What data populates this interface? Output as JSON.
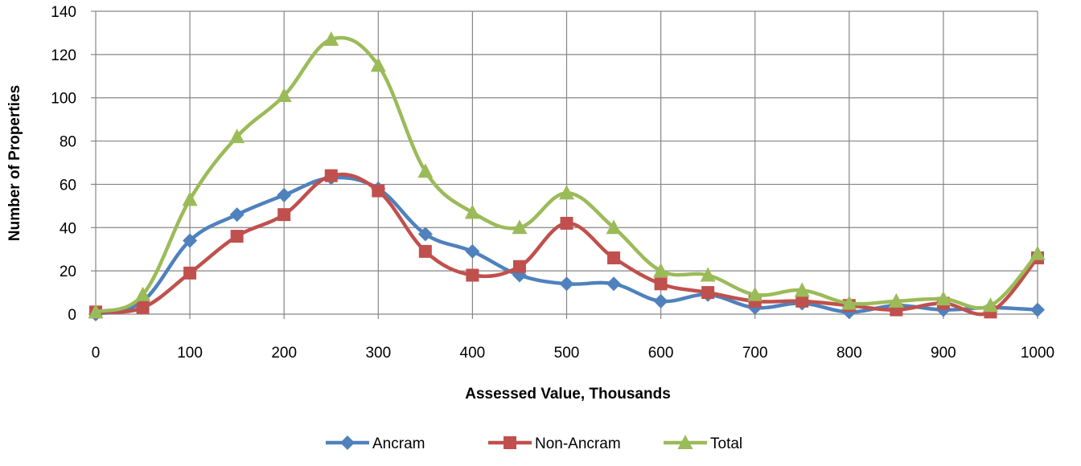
{
  "chart_data": {
    "type": "line",
    "title": "",
    "xlabel": "Assessed Value, Thousands",
    "ylabel": "Number of Properties",
    "xlim": [
      0,
      1000
    ],
    "ylim": [
      0,
      140
    ],
    "x_ticks": [
      0,
      100,
      200,
      300,
      400,
      500,
      600,
      700,
      800,
      900,
      1000
    ],
    "y_ticks": [
      0,
      20,
      40,
      60,
      80,
      100,
      120,
      140
    ],
    "grid": true,
    "legend_position": "bottom",
    "smooth": true,
    "x": [
      0,
      50,
      100,
      150,
      200,
      250,
      300,
      350,
      400,
      450,
      500,
      550,
      600,
      650,
      700,
      750,
      800,
      850,
      900,
      950,
      1000
    ],
    "series": [
      {
        "name": "Ancram",
        "color": "#4F81BD",
        "marker": "diamond",
        "values": [
          0,
          6,
          34,
          46,
          55,
          63,
          58,
          37,
          29,
          18,
          14,
          14,
          6,
          9,
          3,
          5,
          1,
          4,
          2,
          3,
          2
        ]
      },
      {
        "name": "Non-Ancram",
        "color": "#C0504D",
        "marker": "square",
        "values": [
          1,
          3,
          19,
          36,
          46,
          64,
          57,
          29,
          18,
          22,
          42,
          26,
          14,
          10,
          6,
          6,
          4,
          2,
          5,
          1,
          26
        ]
      },
      {
        "name": "Total",
        "color": "#9BBB59",
        "marker": "triangle",
        "values": [
          1,
          9,
          53,
          82,
          101,
          127,
          115,
          66,
          47,
          40,
          56,
          40,
          20,
          18,
          9,
          11,
          5,
          6,
          7,
          4,
          28
        ]
      }
    ]
  }
}
